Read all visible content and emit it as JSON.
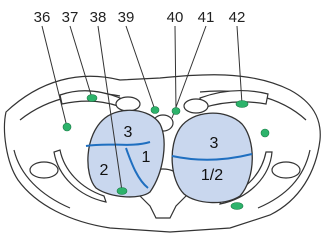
{
  "labels": [
    "36",
    "37",
    "38",
    "39",
    "40",
    "41",
    "42"
  ],
  "regions": {
    "left_upper": "3",
    "left_lower": "2",
    "left_medial": "1",
    "right_upper": "3",
    "right_lower": "1/2"
  }
}
